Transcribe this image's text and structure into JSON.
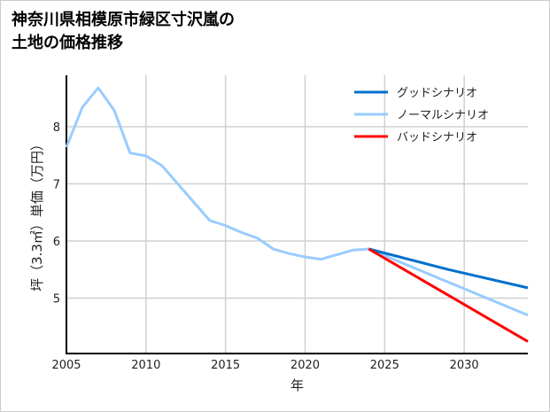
{
  "chart_data": {
    "type": "line",
    "title_lines": [
      "神奈川県相模原市緑区寸沢嵐の",
      "土地の価格推移"
    ],
    "xlabel": "年",
    "ylabel": "坪（3.3㎡）単価（万円）",
    "xlim": [
      2005,
      2034
    ],
    "ylim": [
      4.03,
      8.9
    ],
    "xticks": [
      2005,
      2010,
      2015,
      2020,
      2025,
      2030
    ],
    "yticks": [
      5,
      6,
      7,
      8
    ],
    "grid": true,
    "legend_position": "top-right",
    "series": [
      {
        "name": "グッドシナリオ",
        "color": "#0070cc",
        "x": [
          2024,
          2029,
          2034
        ],
        "y": [
          5.86,
          5.5,
          5.18
        ]
      },
      {
        "name": "ノーマルシナリオ",
        "color": "#99ccff",
        "x": [
          2005,
          2006,
          2007,
          2008,
          2009,
          2010,
          2011,
          2012,
          2013,
          2014,
          2015,
          2016,
          2017,
          2018,
          2019,
          2020,
          2021,
          2022,
          2023,
          2024,
          2034
        ],
        "y": [
          7.64,
          8.34,
          8.68,
          8.29,
          7.54,
          7.49,
          7.32,
          7.0,
          6.68,
          6.36,
          6.27,
          6.15,
          6.05,
          5.86,
          5.78,
          5.72,
          5.68,
          5.76,
          5.84,
          5.86,
          4.7
        ]
      },
      {
        "name": "バッドシナリオ",
        "color": "#ff0000",
        "x": [
          2024,
          2034
        ],
        "y": [
          5.86,
          4.24
        ]
      }
    ]
  }
}
